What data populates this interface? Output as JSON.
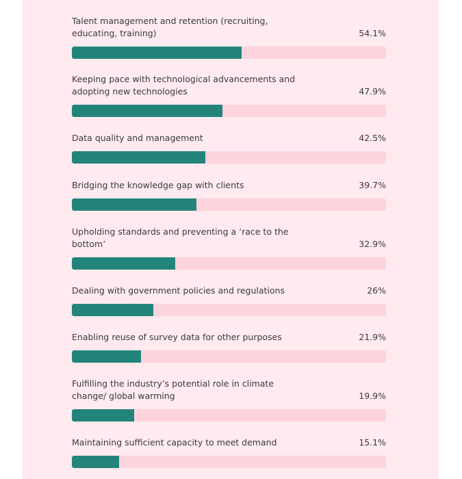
{
  "chart_data": {
    "type": "bar",
    "orientation": "horizontal",
    "max": 100,
    "colors": {
      "fill": "#23847a",
      "track": "#fdd3dc",
      "background": "#feeaef"
    },
    "items": [
      {
        "label": "Talent management and retention (recruiting, educating, training)",
        "value": 54.1,
        "value_label": "54.1%"
      },
      {
        "label": "Keeping pace with technological advancements and adopting new technologies",
        "value": 47.9,
        "value_label": "47.9%"
      },
      {
        "label": "Data quality and management",
        "value": 42.5,
        "value_label": "42.5%"
      },
      {
        "label": "Bridging the knowledge gap with clients",
        "value": 39.7,
        "value_label": "39.7%"
      },
      {
        "label": "Upholding standards and preventing a ‘race to the bottom’",
        "value": 32.9,
        "value_label": "32.9%"
      },
      {
        "label": "Dealing with government policies and regulations",
        "value": 26,
        "value_label": "26%"
      },
      {
        "label": "Enabling reuse of survey data for other purposes",
        "value": 21.9,
        "value_label": "21.9%"
      },
      {
        "label": "Fulfilling the industry’s potential role in climate change/ global warming",
        "value": 19.9,
        "value_label": "19.9%"
      },
      {
        "label": "Maintaining sufficient capacity to meet demand",
        "value": 15.1,
        "value_label": "15.1%"
      }
    ]
  }
}
